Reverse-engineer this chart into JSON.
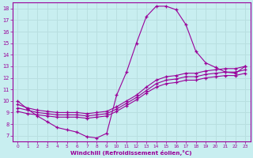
{
  "xlabel": "Windchill (Refroidissement éolien,°C)",
  "bg_color": "#c8eef0",
  "line_color": "#990099",
  "grid_color": "#b8dfe0",
  "xmin": 0,
  "xmax": 23,
  "ymin": 7,
  "ymax": 18,
  "line1_y": [
    10.0,
    9.3,
    8.7,
    8.2,
    7.7,
    7.5,
    7.3,
    6.9,
    6.8,
    7.2,
    10.5,
    12.5,
    15.0,
    17.3,
    18.2,
    18.2,
    17.9,
    16.6,
    14.3,
    13.3,
    12.9,
    12.5,
    12.4,
    13.0
  ],
  "line2_y": [
    9.7,
    9.4,
    9.2,
    9.1,
    9.0,
    9.0,
    9.0,
    8.9,
    9.0,
    9.1,
    9.5,
    10.0,
    10.5,
    11.2,
    11.8,
    12.1,
    12.2,
    12.4,
    12.4,
    12.6,
    12.7,
    12.8,
    12.8,
    13.0
  ],
  "line3_y": [
    9.4,
    9.2,
    9.0,
    8.9,
    8.8,
    8.8,
    8.8,
    8.7,
    8.8,
    8.9,
    9.3,
    9.8,
    10.3,
    10.9,
    11.5,
    11.8,
    11.9,
    12.1,
    12.1,
    12.3,
    12.4,
    12.5,
    12.5,
    12.7
  ],
  "line4_y": [
    9.1,
    8.9,
    8.8,
    8.7,
    8.6,
    8.6,
    8.6,
    8.5,
    8.6,
    8.7,
    9.1,
    9.6,
    10.1,
    10.7,
    11.2,
    11.5,
    11.6,
    11.8,
    11.8,
    12.0,
    12.1,
    12.2,
    12.2,
    12.4
  ],
  "xticks": [
    0,
    1,
    2,
    3,
    4,
    5,
    6,
    7,
    8,
    9,
    10,
    11,
    12,
    13,
    14,
    15,
    16,
    17,
    18,
    19,
    20,
    21,
    22,
    23
  ],
  "yticks": [
    7,
    8,
    9,
    10,
    11,
    12,
    13,
    14,
    15,
    16,
    17,
    18
  ]
}
